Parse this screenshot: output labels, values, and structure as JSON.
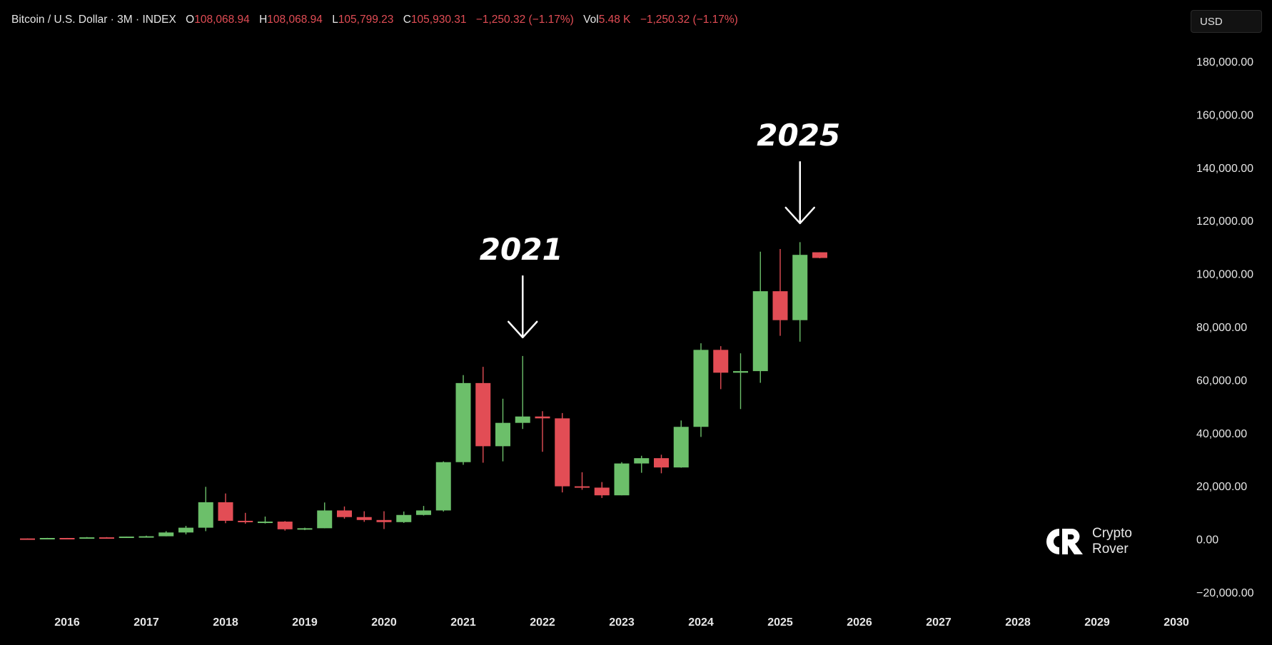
{
  "header": {
    "symbol": "Bitcoin / U.S. Dollar · 3M · INDEX",
    "o_label": "O",
    "o_value": "108,068.94",
    "h_label": "H",
    "h_value": "108,068.94",
    "l_label": "L",
    "l_value": "105,799.23",
    "c_label": "C",
    "c_value": "105,930.31",
    "change": "−1,250.32 (−1.17%)",
    "vol_label": "Vol",
    "vol_value": "5.48 K",
    "vol_change": "−1,250.32 (−1.17%)"
  },
  "currency_button": "USD",
  "watermark": {
    "line1": "Crypto",
    "line2": "Rover"
  },
  "colors": {
    "up": "#6cbf6a",
    "down": "#e24d55",
    "background": "#000000",
    "text": "#e6e6e6"
  },
  "chart_data": {
    "type": "candlestick",
    "interval": "3M",
    "y_ticks": [
      180000,
      160000,
      140000,
      120000,
      100000,
      80000,
      60000,
      40000,
      20000,
      0,
      -20000
    ],
    "y_tick_labels": [
      "180,000.00",
      "160,000.00",
      "140,000.00",
      "120,000.00",
      "100,000.00",
      "80,000.00",
      "60,000.00",
      "40,000.00",
      "20,000.00",
      "0.00",
      "−20,000.00"
    ],
    "ylim": [
      -22000,
      190000
    ],
    "x_tick_labels": [
      "2016",
      "2017",
      "2018",
      "2019",
      "2020",
      "2021",
      "2022",
      "2023",
      "2024",
      "2025",
      "2026",
      "2027",
      "2028",
      "2029",
      "2030"
    ],
    "x_ticks": [
      2016,
      2017,
      2018,
      2019,
      2020,
      2021,
      2022,
      2023,
      2024,
      2025,
      2026,
      2027,
      2028,
      2029,
      2030
    ],
    "xlim": [
      2015.35,
      2030.1
    ],
    "candles": [
      {
        "t": 2015.5,
        "o": 260,
        "h": 310,
        "l": 210,
        "c": 240
      },
      {
        "t": 2015.75,
        "o": 240,
        "h": 470,
        "l": 200,
        "c": 430
      },
      {
        "t": 2016.0,
        "o": 430,
        "h": 450,
        "l": 360,
        "c": 420
      },
      {
        "t": 2016.25,
        "o": 420,
        "h": 780,
        "l": 410,
        "c": 670
      },
      {
        "t": 2016.5,
        "o": 670,
        "h": 760,
        "l": 540,
        "c": 610
      },
      {
        "t": 2016.75,
        "o": 610,
        "h": 980,
        "l": 590,
        "c": 960
      },
      {
        "t": 2017.0,
        "o": 960,
        "h": 1300,
        "l": 750,
        "c": 1080
      },
      {
        "t": 2017.25,
        "o": 1080,
        "h": 3000,
        "l": 1060,
        "c": 2500
      },
      {
        "t": 2017.5,
        "o": 2500,
        "h": 5000,
        "l": 1800,
        "c": 4300
      },
      {
        "t": 2017.75,
        "o": 4300,
        "h": 19700,
        "l": 3000,
        "c": 13900
      },
      {
        "t": 2018.0,
        "o": 13900,
        "h": 17200,
        "l": 6000,
        "c": 6900
      },
      {
        "t": 2018.25,
        "o": 6900,
        "h": 9900,
        "l": 5800,
        "c": 6400
      },
      {
        "t": 2018.5,
        "o": 6400,
        "h": 8500,
        "l": 5900,
        "c": 6600
      },
      {
        "t": 2018.75,
        "o": 6600,
        "h": 6800,
        "l": 3200,
        "c": 3700
      },
      {
        "t": 2019.0,
        "o": 3700,
        "h": 4300,
        "l": 3400,
        "c": 4100
      },
      {
        "t": 2019.25,
        "o": 4100,
        "h": 13800,
        "l": 4100,
        "c": 10800
      },
      {
        "t": 2019.5,
        "o": 10800,
        "h": 12300,
        "l": 7700,
        "c": 8300
      },
      {
        "t": 2019.75,
        "o": 8300,
        "h": 10500,
        "l": 6500,
        "c": 7200
      },
      {
        "t": 2020.0,
        "o": 7200,
        "h": 10500,
        "l": 3800,
        "c": 6400
      },
      {
        "t": 2020.25,
        "o": 6400,
        "h": 10400,
        "l": 6100,
        "c": 9100
      },
      {
        "t": 2020.5,
        "o": 9100,
        "h": 12500,
        "l": 8900,
        "c": 10800
      },
      {
        "t": 2020.75,
        "o": 10800,
        "h": 29300,
        "l": 10400,
        "c": 29000
      },
      {
        "t": 2021.0,
        "o": 29000,
        "h": 61800,
        "l": 28000,
        "c": 58800
      },
      {
        "t": 2021.25,
        "o": 58800,
        "h": 64900,
        "l": 28800,
        "c": 35000
      },
      {
        "t": 2021.5,
        "o": 35000,
        "h": 52900,
        "l": 29300,
        "c": 43800
      },
      {
        "t": 2021.75,
        "o": 43800,
        "h": 69000,
        "l": 41500,
        "c": 46200
      },
      {
        "t": 2022.0,
        "o": 46200,
        "h": 48200,
        "l": 32900,
        "c": 45500
      },
      {
        "t": 2022.25,
        "o": 45500,
        "h": 47500,
        "l": 17600,
        "c": 19900
      },
      {
        "t": 2022.5,
        "o": 19900,
        "h": 25200,
        "l": 18600,
        "c": 19400
      },
      {
        "t": 2022.75,
        "o": 19400,
        "h": 21500,
        "l": 15500,
        "c": 16500
      },
      {
        "t": 2023.0,
        "o": 16500,
        "h": 29000,
        "l": 16500,
        "c": 28500
      },
      {
        "t": 2023.25,
        "o": 28500,
        "h": 31400,
        "l": 25000,
        "c": 30500
      },
      {
        "t": 2023.5,
        "o": 30500,
        "h": 31800,
        "l": 24800,
        "c": 27000
      },
      {
        "t": 2023.75,
        "o": 27000,
        "h": 44700,
        "l": 26900,
        "c": 42300
      },
      {
        "t": 2024.0,
        "o": 42300,
        "h": 73800,
        "l": 38500,
        "c": 71300
      },
      {
        "t": 2024.25,
        "o": 71300,
        "h": 72700,
        "l": 56500,
        "c": 62700
      },
      {
        "t": 2024.5,
        "o": 62700,
        "h": 70000,
        "l": 49000,
        "c": 63300
      },
      {
        "t": 2024.75,
        "o": 63300,
        "h": 108300,
        "l": 58900,
        "c": 93400
      },
      {
        "t": 2025.0,
        "o": 93400,
        "h": 109300,
        "l": 76600,
        "c": 82500
      },
      {
        "t": 2025.25,
        "o": 82500,
        "h": 111900,
        "l": 74400,
        "c": 107100
      },
      {
        "t": 2025.5,
        "o": 108068.94,
        "h": 108068.94,
        "l": 105799.23,
        "c": 105930.31
      }
    ],
    "annotations": [
      {
        "text": "2021",
        "x": 2021.75,
        "y": 109000,
        "arrow_to": 76000
      },
      {
        "text": "2025",
        "x": 2025.25,
        "y": 152000,
        "arrow_to": 119000
      }
    ]
  }
}
